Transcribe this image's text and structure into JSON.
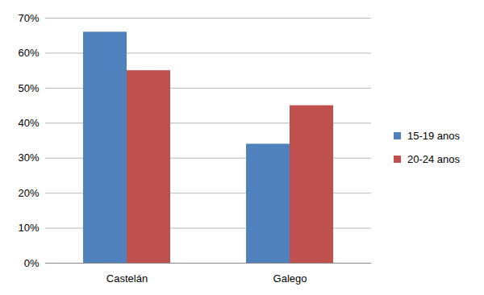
{
  "chart_data": {
    "type": "bar",
    "categories": [
      "Castelán",
      "Galego"
    ],
    "series": [
      {
        "name": "15-19 anos",
        "color": "#4f81bd",
        "values": [
          66,
          34
        ]
      },
      {
        "name": "20-24 anos",
        "color": "#c0504d",
        "values": [
          55,
          45
        ]
      }
    ],
    "ylim": [
      0,
      70
    ],
    "yticks": [
      {
        "value": 0,
        "label": "0%"
      },
      {
        "value": 10,
        "label": "10%"
      },
      {
        "value": 20,
        "label": "20%"
      },
      {
        "value": 30,
        "label": "30%"
      },
      {
        "value": 40,
        "label": "40%"
      },
      {
        "value": 50,
        "label": "50%"
      },
      {
        "value": 60,
        "label": "60%"
      },
      {
        "value": 70,
        "label": "70%"
      }
    ],
    "grid": true,
    "legend": "right"
  }
}
